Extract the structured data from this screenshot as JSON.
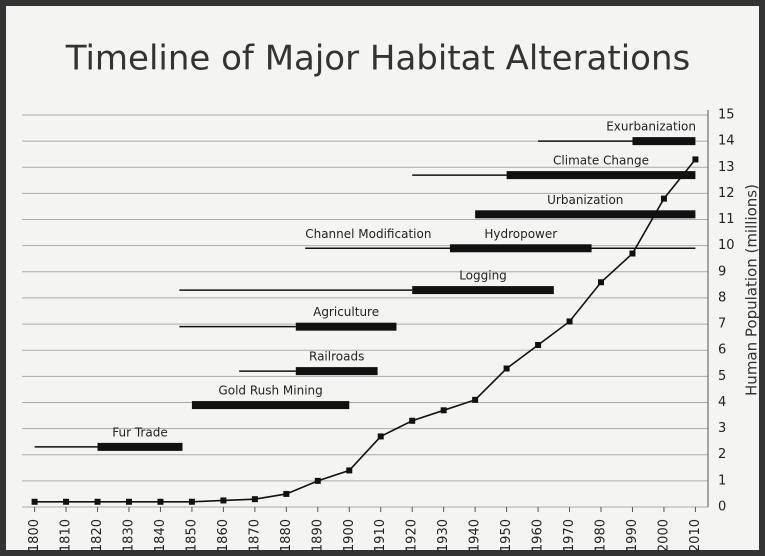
{
  "chart_data": {
    "type": "line",
    "title": "Timeline of Major Habitat Alterations",
    "y_label": "Human Population (millions)",
    "x": [
      1800,
      1810,
      1820,
      1830,
      1840,
      1850,
      1860,
      1870,
      1880,
      1890,
      1900,
      1910,
      1920,
      1930,
      1940,
      1950,
      1960,
      1970,
      1980,
      1990,
      2000,
      2010
    ],
    "xlim": [
      1796,
      2014
    ],
    "xticks": [
      1800,
      1810,
      1820,
      1830,
      1840,
      1850,
      1860,
      1870,
      1880,
      1890,
      1900,
      1910,
      1920,
      1930,
      1940,
      1950,
      1960,
      1970,
      1980,
      1990,
      2000,
      2010
    ],
    "ylim": [
      0,
      15
    ],
    "yticks": [
      0,
      1,
      2,
      3,
      4,
      5,
      6,
      7,
      8,
      9,
      10,
      11,
      12,
      13,
      14,
      15
    ],
    "grid": true,
    "series": [
      {
        "name": "Human Population",
        "color": "#111111",
        "values": [
          0.2,
          0.2,
          0.2,
          0.2,
          0.2,
          0.2,
          0.25,
          0.3,
          0.5,
          1.0,
          1.4,
          2.7,
          3.3,
          3.7,
          4.1,
          5.3,
          6.2,
          7.1,
          8.6,
          9.7,
          11.8,
          13.3
        ]
      }
    ],
    "periods": [
      {
        "name": "Fur Trade",
        "row": 2.3,
        "minor": [
          1800,
          1847
        ],
        "major": [
          1820,
          1847
        ]
      },
      {
        "name": "Gold Rush Mining",
        "row": 3.9,
        "minor": null,
        "major": [
          1850,
          1900
        ]
      },
      {
        "name": "Railroads",
        "row": 5.2,
        "minor": [
          1865,
          1883
        ],
        "major": [
          1883,
          1909
        ]
      },
      {
        "name": "Agriculture",
        "row": 6.9,
        "minor": [
          1846,
          1883
        ],
        "major": [
          1883,
          1915
        ]
      },
      {
        "name": "Logging",
        "row": 8.3,
        "minor": [
          1846,
          1920
        ],
        "major": [
          1920,
          1965
        ]
      },
      {
        "name": "Channel Modification",
        "row": 9.9,
        "minor": [
          1886,
          2010
        ],
        "major": null
      },
      {
        "name": "Hydropower",
        "row": 9.9,
        "minor": null,
        "major": [
          1932,
          1977
        ]
      },
      {
        "name": "Urbanization",
        "row": 11.2,
        "minor": null,
        "major": [
          1940,
          2010
        ]
      },
      {
        "name": "Climate Change",
        "row": 12.7,
        "minor": [
          1920,
          1950
        ],
        "major": [
          1950,
          2010
        ]
      },
      {
        "name": "Exurbanization",
        "row": 14.0,
        "minor": [
          1960,
          1990
        ],
        "major": [
          1990,
          2010
        ]
      }
    ]
  }
}
